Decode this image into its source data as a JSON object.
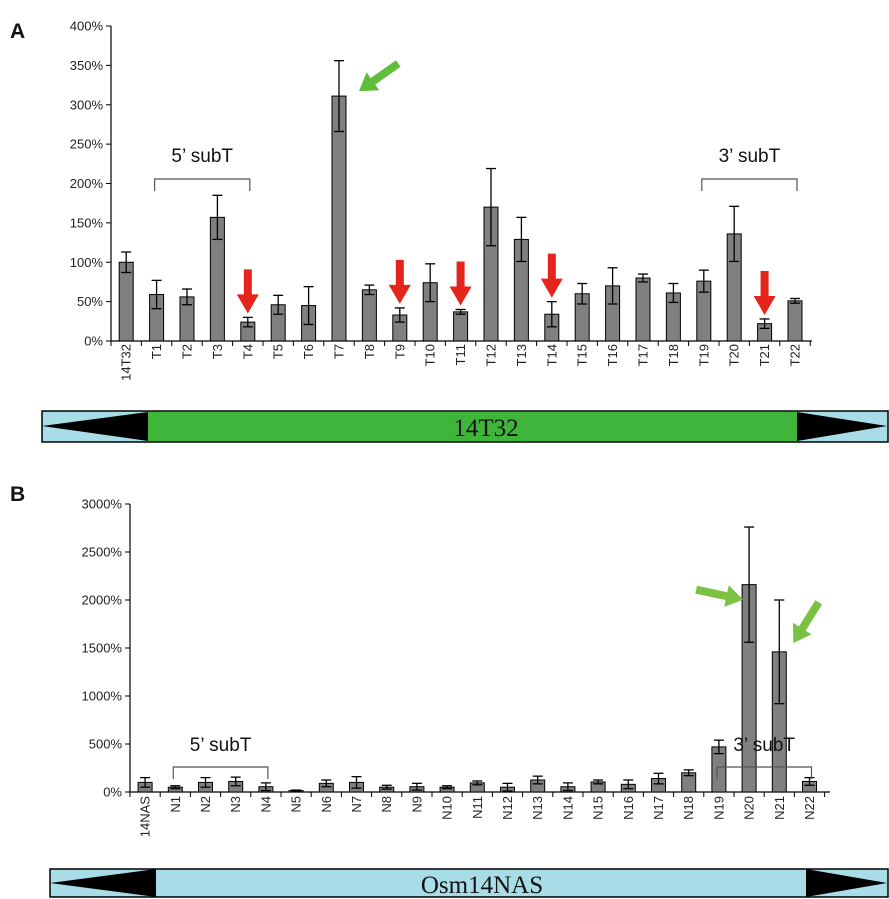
{
  "chart_data": [
    {
      "panel": "A",
      "type": "bar",
      "categories": [
        "14T32",
        "T1",
        "T2",
        "T3",
        "T4",
        "T5",
        "T6",
        "T7",
        "T8",
        "T9",
        "T10",
        "T11",
        "T12",
        "T13",
        "T14",
        "T15",
        "T16",
        "T17",
        "T18",
        "T19",
        "T20",
        "T21",
        "T22"
      ],
      "values": [
        100,
        59,
        56,
        157,
        24,
        46,
        45,
        311,
        65,
        33,
        74,
        37,
        170,
        129,
        34,
        60,
        70,
        80,
        61,
        76,
        136,
        22,
        51
      ],
      "errors": [
        13,
        18,
        10,
        28,
        6,
        12,
        24,
        45,
        6,
        9,
        24,
        3,
        49,
        28,
        16,
        13,
        23,
        5,
        12,
        14,
        35,
        6,
        3
      ],
      "yticks": [
        "0%",
        "50%",
        "100%",
        "150%",
        "200%",
        "250%",
        "300%",
        "350%",
        "400%"
      ],
      "ylim": [
        0,
        400
      ],
      "bar_color": "#808080",
      "brackets": [
        {
          "label": "5’ subT",
          "from": "T1",
          "to": "T4"
        },
        {
          "label": "3’ subT",
          "from": "T19",
          "to": "T22"
        }
      ],
      "arrows_down": [
        "T4",
        "T9",
        "T11",
        "T14",
        "T21"
      ],
      "arrows_up_highlight": [
        "T7"
      ],
      "arrow_down_color": "#e5241c",
      "arrow_highlight_color": "#5fbd3a",
      "gene_bar": {
        "label": "14T32",
        "fill": "#3fb53b",
        "end_color": "#a8dce6"
      }
    },
    {
      "panel": "B",
      "type": "bar",
      "categories": [
        "14NAS",
        "N1",
        "N2",
        "N3",
        "N4",
        "N5",
        "N6",
        "N7",
        "N8",
        "N9",
        "N10",
        "N11",
        "N12",
        "N13",
        "N14",
        "N15",
        "N16",
        "N17",
        "N18",
        "N19",
        "N20",
        "N21",
        "N22"
      ],
      "values": [
        100,
        50,
        100,
        110,
        55,
        15,
        90,
        100,
        50,
        55,
        50,
        95,
        50,
        125,
        55,
        105,
        80,
        140,
        200,
        470,
        2160,
        1460,
        110
      ],
      "errors": [
        50,
        15,
        50,
        45,
        40,
        5,
        35,
        60,
        20,
        35,
        15,
        20,
        40,
        40,
        40,
        20,
        45,
        55,
        30,
        70,
        600,
        540,
        40
      ],
      "yticks": [
        "0%",
        "500%",
        "1000%",
        "1500%",
        "2000%",
        "2500%",
        "3000%"
      ],
      "ylim": [
        0,
        3000
      ],
      "bar_color": "#808080",
      "brackets": [
        {
          "label": "5’ subT",
          "from": "N1",
          "to": "N4"
        },
        {
          "label": "3’ subT",
          "from": "N19",
          "to": "N22"
        }
      ],
      "arrows_highlight": [
        "N20",
        "N21"
      ],
      "arrow_highlight_color": "#7cc242",
      "gene_bar": {
        "label": "Osm14NAS",
        "fill": "#a8dce6",
        "end_color": "#a8dce6"
      }
    }
  ]
}
